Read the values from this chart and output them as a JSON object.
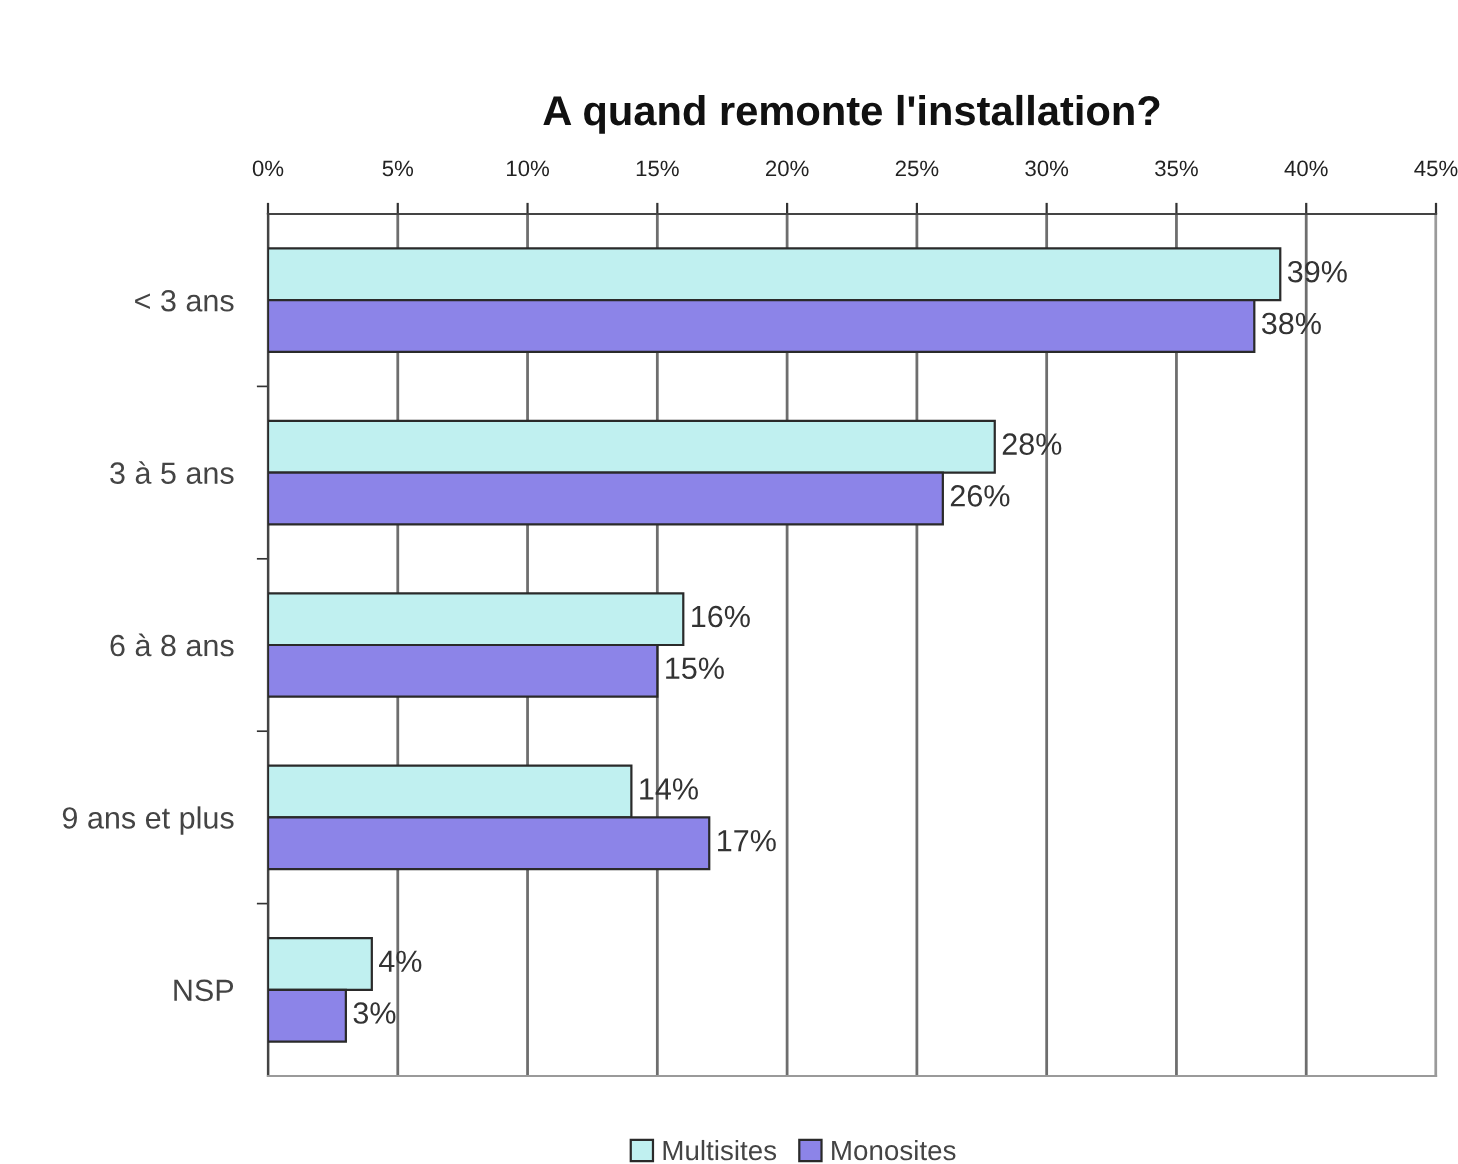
{
  "chart_data": {
    "type": "bar",
    "orientation": "horizontal",
    "title": "A quand remonte l'installation?",
    "categories": [
      "< 3 ans",
      "3 à 5 ans",
      "6 à 8 ans",
      "9 ans et plus",
      "NSP"
    ],
    "series": [
      {
        "name": "Multisites",
        "color": "#c0f0f0",
        "values": [
          39,
          28,
          16,
          14,
          4
        ],
        "value_labels": [
          "39%",
          "28%",
          "16%",
          "14%",
          "4%"
        ]
      },
      {
        "name": "Monosites",
        "color": "#8c84e8",
        "values": [
          38,
          26,
          15,
          17,
          3
        ],
        "value_labels": [
          "38%",
          "26%",
          "15%",
          "17%",
          "3%"
        ]
      }
    ],
    "xlim": [
      0,
      45
    ],
    "xticks": [
      {
        "value": 0,
        "label": "0%"
      },
      {
        "value": 5,
        "label": "5%"
      },
      {
        "value": 10,
        "label": "10%"
      },
      {
        "value": 15,
        "label": "15%"
      },
      {
        "value": 20,
        "label": "20%"
      },
      {
        "value": 25,
        "label": "25%"
      },
      {
        "value": 30,
        "label": "30%"
      },
      {
        "value": 35,
        "label": "35%"
      },
      {
        "value": 40,
        "label": "40%"
      },
      {
        "value": 45,
        "label": "45%"
      }
    ],
    "grid": "x",
    "legend": "bottom"
  }
}
